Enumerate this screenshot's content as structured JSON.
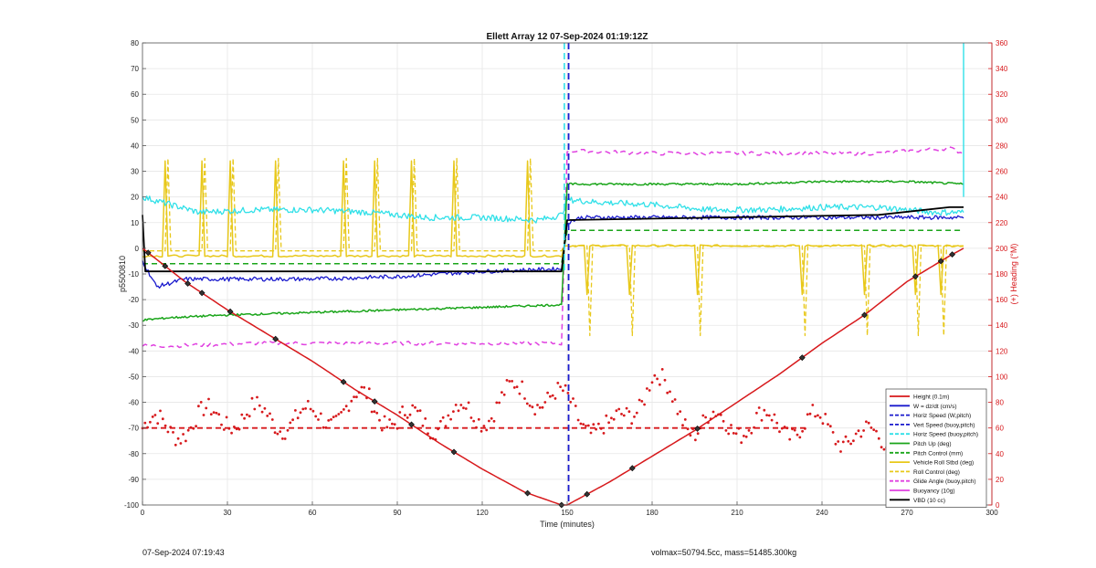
{
  "footer": {
    "timestamp": "07-Sep-2024 07:19:43",
    "mass_info": "volmax=50794.5cc, mass=51485.300kg"
  },
  "chart_data": {
    "type": "line",
    "title": "Ellett Array 12 07-Sep-2024 01:19:12Z",
    "xlabel": "Time (minutes)",
    "ylabel_left": "p5500810",
    "ylabel_right": "(+) Heading (°M)",
    "xlim": [
      0,
      300
    ],
    "ylim_left": [
      -100,
      80
    ],
    "ylim_right": [
      0,
      360
    ],
    "xticks": [
      "0",
      "30",
      "60",
      "90",
      "120",
      "150",
      "180",
      "210",
      "240",
      "270",
      "300"
    ],
    "yticks_left": [
      "-100",
      "-90",
      "-80",
      "-70",
      "-60",
      "-50",
      "-40",
      "-30",
      "-20",
      "-10",
      "0",
      "10",
      "20",
      "30",
      "40",
      "50",
      "60",
      "70",
      "80"
    ],
    "yticks_right": [
      "0",
      "20",
      "40",
      "60",
      "80",
      "100",
      "120",
      "140",
      "160",
      "180",
      "200",
      "220",
      "240",
      "260",
      "280",
      "300",
      "320",
      "340",
      "360"
    ],
    "grid": true,
    "legend_position": "bottom-right",
    "colors": {
      "red": "#d7191c",
      "blue": "#1a1acd",
      "cyan": "#30e0e8",
      "green": "#1aa51a",
      "yellow": "#e8c81a",
      "magenta": "#e040e0",
      "black": "#000000"
    },
    "legend": [
      {
        "label": "Height (0.1m)",
        "color": "#d7191c",
        "dash": "solid"
      },
      {
        "label": "W = dz/dt (cm/s)",
        "color": "#1a1acd",
        "dash": "solid"
      },
      {
        "label": "Horiz Speed (W,pitch)",
        "color": "#1a1acd",
        "dash": "dashed"
      },
      {
        "label": "Vert Speed (buoy,pitch)",
        "color": "#1a1acd",
        "dash": "dashed"
      },
      {
        "label": "Horiz Speed (buoy,pitch)",
        "color": "#30e0e8",
        "dash": "dashed"
      },
      {
        "label": "Pitch Up (deg)",
        "color": "#1aa51a",
        "dash": "solid"
      },
      {
        "label": "Pitch Control (mm)",
        "color": "#1aa51a",
        "dash": "dashed"
      },
      {
        "label": "Vehicle Roll Stbd (deg)",
        "color": "#e8c81a",
        "dash": "solid"
      },
      {
        "label": "Roll Control (deg)",
        "color": "#e8c81a",
        "dash": "dashed"
      },
      {
        "label": "Glide Angle (buoy,pitch)",
        "color": "#e040e0",
        "dash": "dashed"
      },
      {
        "label": "Buoyancy (10g)",
        "color": "#e040e0",
        "dash": "solid"
      },
      {
        "label": "VBD (10 cc)",
        "color": "#000000",
        "dash": "solid"
      }
    ],
    "series": [
      {
        "name": "Height (0.1m)",
        "x": [
          0,
          15,
          30,
          45,
          60,
          75,
          90,
          105,
          120,
          135,
          148,
          150,
          165,
          180,
          195,
          210,
          225,
          240,
          255,
          270,
          285,
          290
        ],
        "y": [
          0,
          -13,
          -24,
          -34,
          -44,
          -55,
          -65,
          -76,
          -86,
          -95,
          -100,
          -100,
          -91,
          -81,
          -71,
          -60,
          -49,
          -37,
          -26,
          -13,
          -3,
          0
        ]
      },
      {
        "name": "W = dz/dt (cm/s)",
        "x": [
          0,
          5,
          15,
          30,
          60,
          90,
          120,
          148,
          150,
          155,
          180,
          210,
          240,
          270,
          290
        ],
        "y": [
          -5,
          -15,
          -12,
          -12,
          -12,
          -11,
          -9,
          -8,
          10,
          12,
          12,
          12,
          12,
          12,
          12
        ]
      },
      {
        "name": "Horiz Speed (buoy,pitch)",
        "x": [
          0,
          10,
          20,
          40,
          60,
          80,
          100,
          120,
          140,
          148,
          150,
          160,
          180,
          200,
          220,
          240,
          260,
          280,
          290
        ],
        "y": [
          20,
          17,
          14,
          15,
          15,
          14,
          12,
          12,
          11,
          13,
          19,
          18,
          17,
          15,
          15,
          16,
          16,
          14,
          14
        ]
      },
      {
        "name": "Pitch Up (deg)",
        "x": [
          0,
          10,
          30,
          60,
          90,
          120,
          148,
          150,
          160,
          180,
          210,
          240,
          270,
          290
        ],
        "y": [
          -28,
          -27,
          -26,
          -25,
          -24,
          -23,
          -22,
          25,
          25,
          25,
          25,
          26,
          26,
          25
        ]
      },
      {
        "name": "Pitch Control (mm)",
        "x": [
          0,
          148,
          150,
          290
        ],
        "y": [
          -6,
          -6,
          7,
          7
        ]
      },
      {
        "name": "Vehicle Roll Stbd (deg)",
        "x": [
          0,
          148,
          150,
          290
        ],
        "y": [
          -3,
          -3,
          1,
          1
        ]
      },
      {
        "name": "Roll Control (deg)",
        "x": [
          0,
          148,
          150,
          290
        ],
        "y": [
          -1,
          -1,
          1,
          1
        ]
      },
      {
        "name": "Glide Angle (buoy,pitch)",
        "x": [
          0,
          10,
          40,
          80,
          120,
          148,
          150,
          180,
          220,
          260,
          285,
          290
        ],
        "y": [
          -38,
          -38,
          -37,
          -37,
          -37,
          -37,
          38,
          37,
          37,
          37,
          39,
          37
        ]
      },
      {
        "name": "VBD (10 cc)",
        "x": [
          0,
          1,
          148,
          150,
          260,
          285,
          290
        ],
        "y": [
          13,
          -9,
          -9,
          11,
          13,
          16,
          16
        ]
      },
      {
        "name": "Heading",
        "x": [
          0,
          10,
          30,
          60,
          80,
          90,
          120,
          135,
          150,
          165,
          180,
          195,
          210,
          240,
          255,
          270,
          285,
          290
        ],
        "y": [
          60,
          60,
          70,
          66,
          82,
          64,
          72,
          90,
          78,
          54,
          98,
          62,
          64,
          62,
          50,
          58,
          70,
          60
        ]
      }
    ]
  }
}
